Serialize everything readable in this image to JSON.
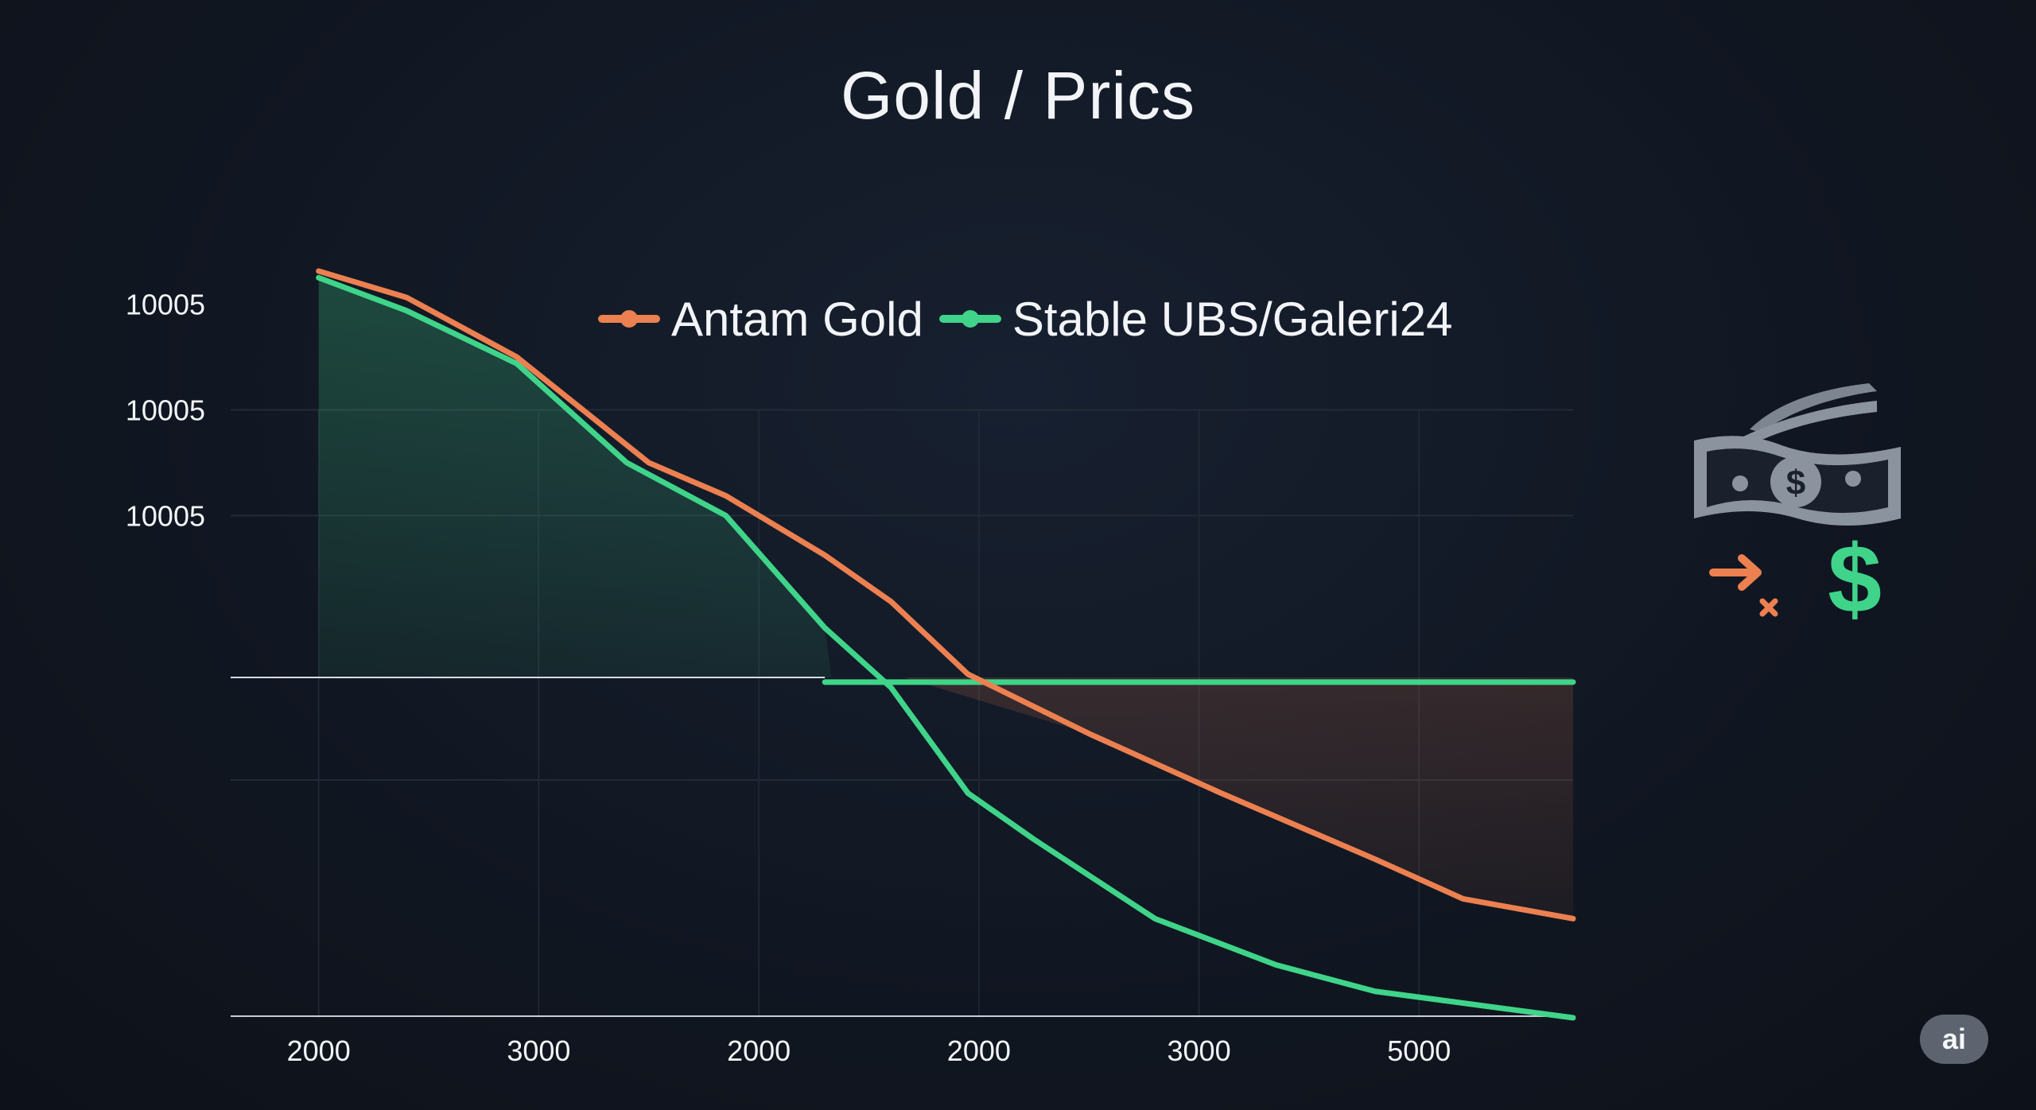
{
  "colors": {
    "antam": "#ec8050",
    "stable": "#3fd489",
    "grid": "#232b37",
    "axis": "#c9ced6",
    "text": "#f2f4f7"
  },
  "icons": {
    "money": "banknote-dollar-icon",
    "arrow": "arrow-right-icon",
    "cross": "x-icon",
    "dollar": "dollar-sign-icon"
  },
  "badge": {
    "label": "ai"
  },
  "chart_data": {
    "type": "line",
    "title": "Gold / Prics",
    "xlabel": "",
    "ylabel": "",
    "x_tick_labels": [
      "2000",
      "3000",
      "2000",
      "2000",
      "3000",
      "5000"
    ],
    "y_tick_labels": [
      "10005",
      "10005",
      "10005"
    ],
    "grid": true,
    "legend_position": "top-center",
    "series": [
      {
        "name": "Antam Gold",
        "color": "#ec8050",
        "points": [
          [
            0,
            101
          ],
          [
            0.4,
            97
          ],
          [
            0.9,
            88
          ],
          [
            1.5,
            72
          ],
          [
            1.85,
            67
          ],
          [
            2.3,
            58
          ],
          [
            2.6,
            51
          ],
          [
            2.95,
            40
          ],
          [
            3.5,
            31
          ],
          [
            4.1,
            22
          ],
          [
            4.8,
            12
          ],
          [
            5.2,
            6
          ],
          [
            5.7,
            3
          ]
        ]
      },
      {
        "name": "Stable UBS/Galeri24",
        "color": "#3fd489",
        "points": [
          [
            0,
            100
          ],
          [
            0.4,
            95
          ],
          [
            0.9,
            87
          ],
          [
            1.4,
            72
          ],
          [
            1.85,
            64
          ],
          [
            2.3,
            47
          ],
          [
            2.6,
            38
          ],
          [
            2.95,
            22
          ],
          [
            3.25,
            15
          ],
          [
            3.8,
            3
          ],
          [
            4.35,
            -4
          ],
          [
            4.8,
            -8
          ],
          [
            5.7,
            -12
          ]
        ],
        "baseline_value": 39.5
      }
    ]
  }
}
